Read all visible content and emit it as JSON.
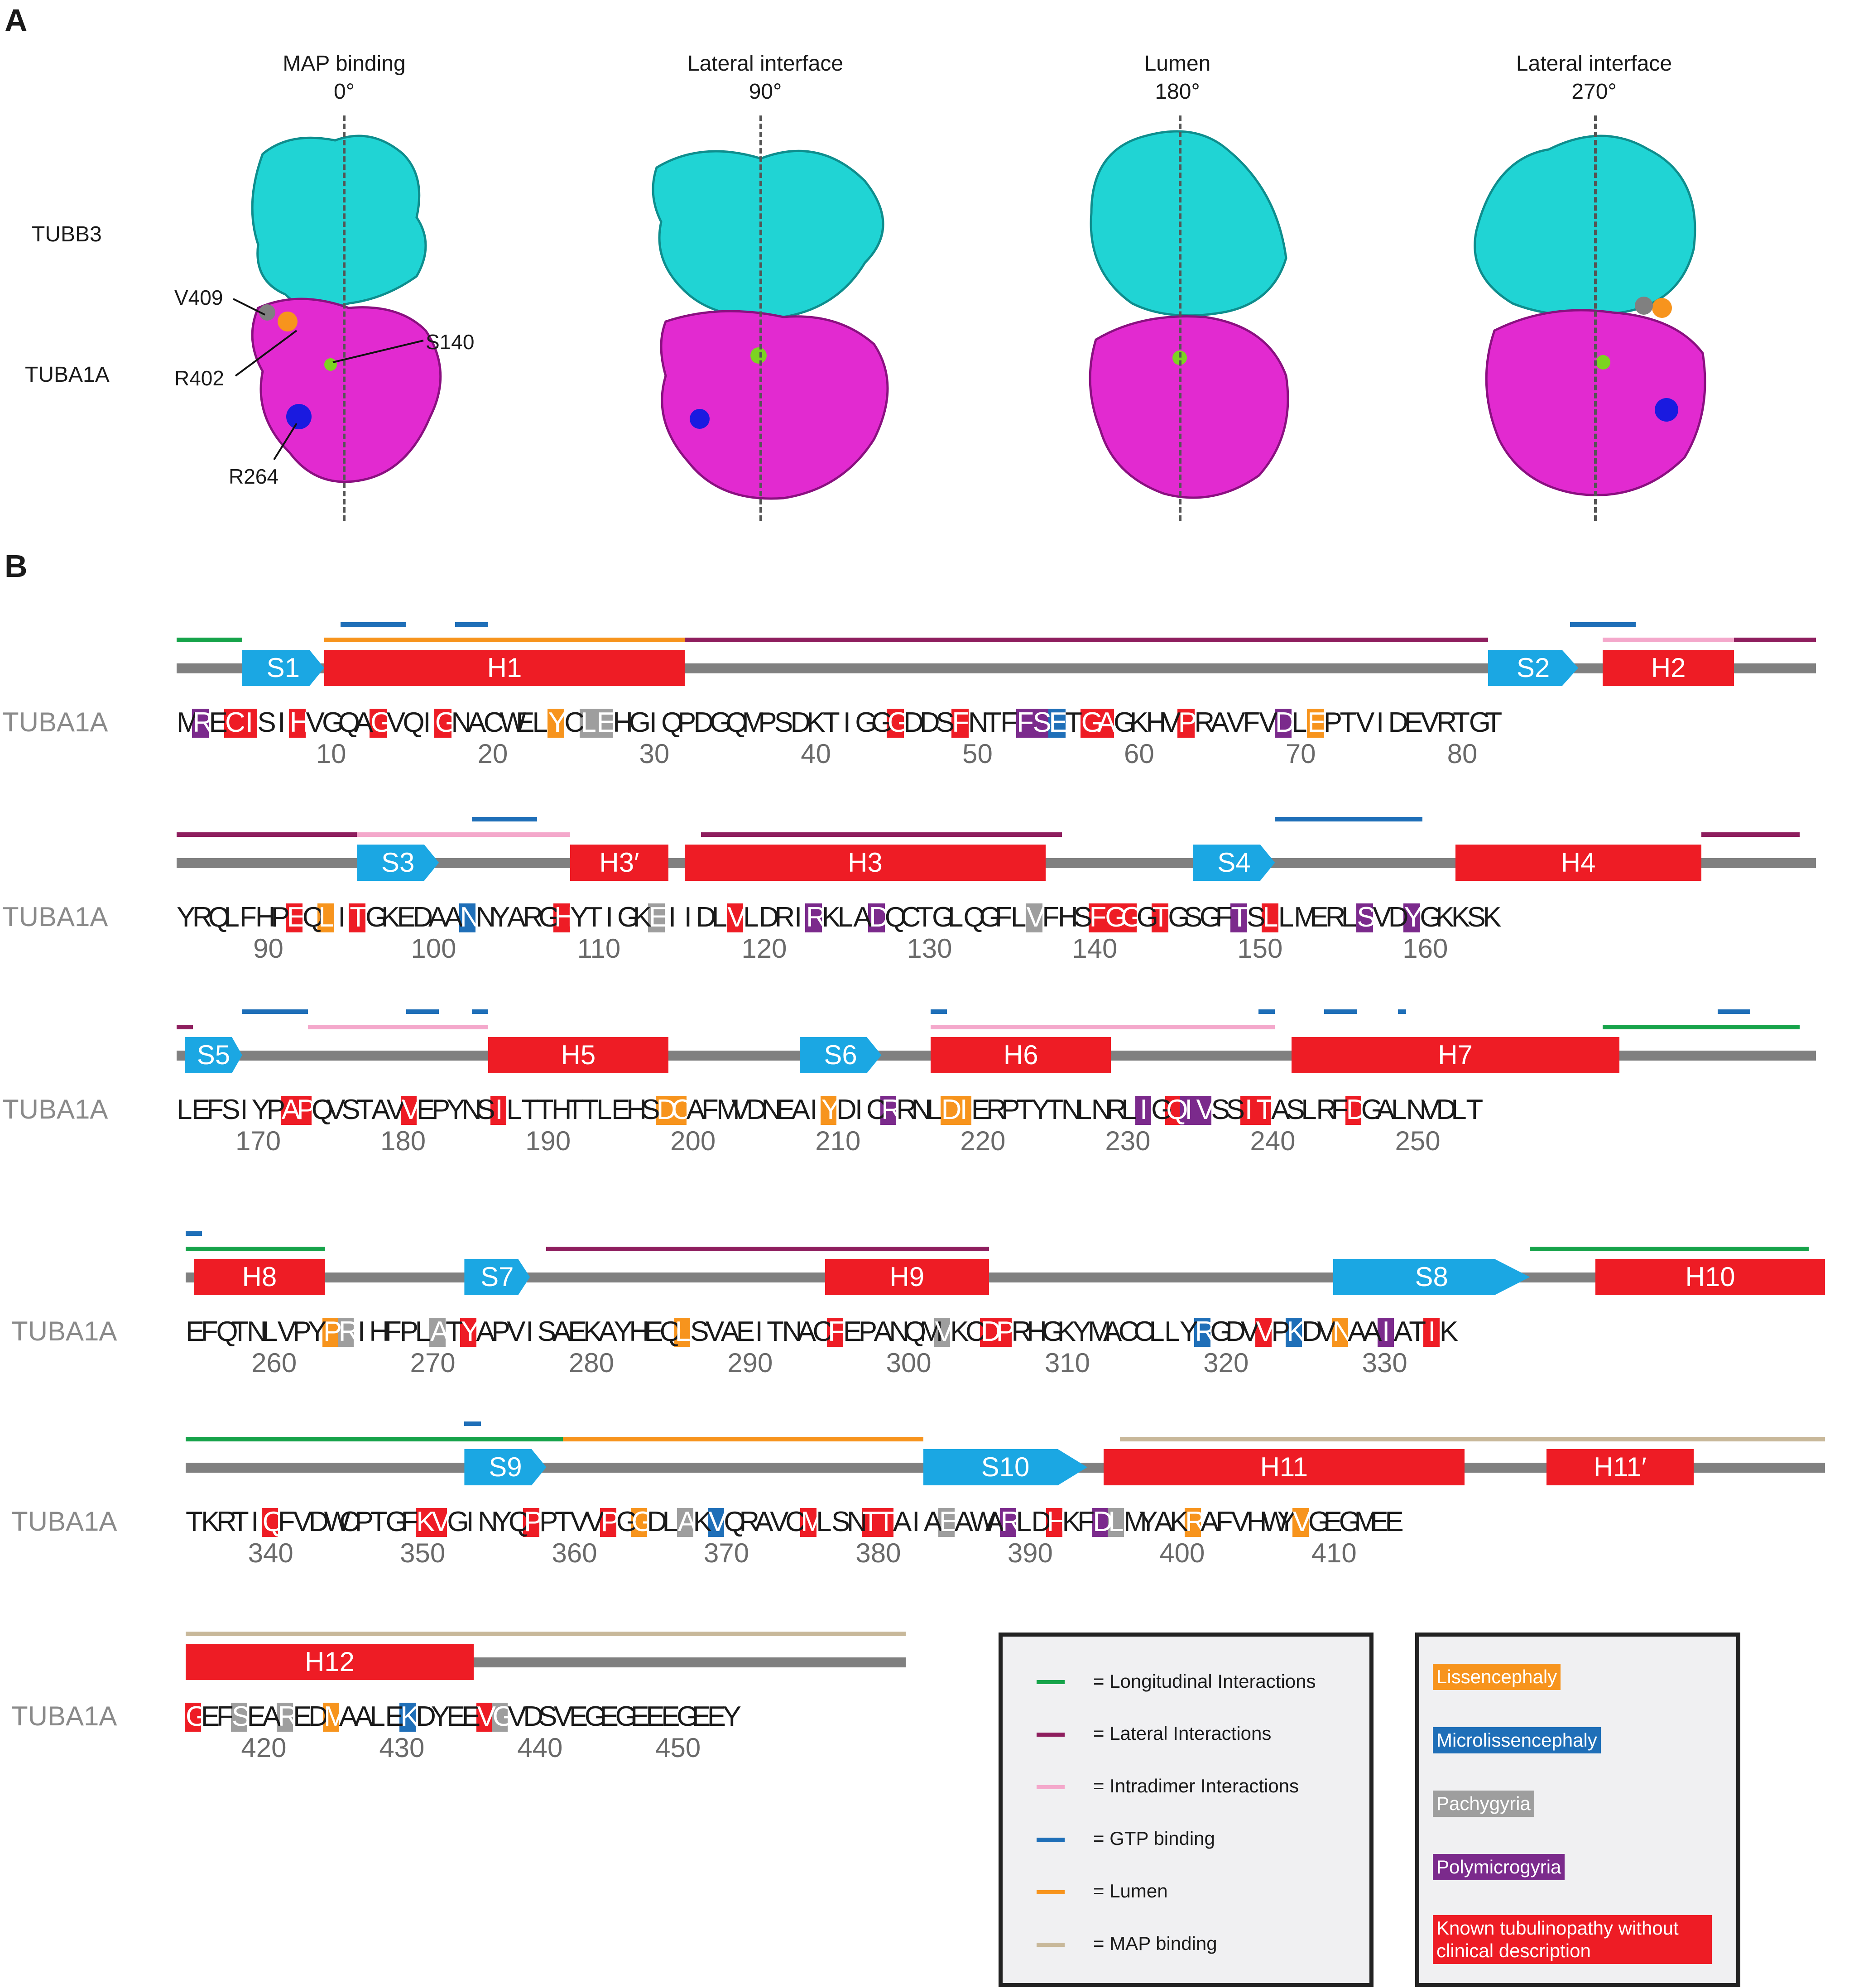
{
  "panel_labels": [
    "A",
    "B"
  ],
  "views": [
    {
      "title": "MAP binding",
      "angle": "0°"
    },
    {
      "title": "Lateral interface",
      "angle": "90°"
    },
    {
      "title": "Lumen",
      "angle": "180°"
    },
    {
      "title": "Lateral interface",
      "angle": "270°"
    }
  ],
  "molecule_labels": {
    "beta": "TUBB3",
    "alpha": "TUBA1A"
  },
  "residue_callouts": [
    "V409",
    "R402",
    "S140",
    "R264"
  ],
  "colors": {
    "beta_subunit": "#20d4d4",
    "alpha_subunit": "#e22ad0",
    "helix": "#ee1c25",
    "strand": "#1ba7e3",
    "backbone": "#808080",
    "longitudinal": "#16a34a",
    "lateral": "#8e1e5e",
    "intradimer": "#f4a8cb",
    "gtp": "#1f6fb8",
    "lumen": "#f7941d",
    "map_binding": "#c8b89a",
    "lissencephaly": "#f7941d",
    "microlissencephaly": "#1f6fb8",
    "pachygyria": "#9e9e9e",
    "polymicrogyria": "#7b2a8c",
    "known": "#ee1c25"
  },
  "sequence_label": "TUBA1A",
  "rows": [
    {
      "seq": "MRECISIHVGQAGVQIGNACWELYCLEHGIQPDGQMPSDKTIGGGDDSFNTFFSETGAGKHVPRAVFVDLEPTVIDEVRTGT",
      "ticks": [
        "10",
        "20",
        "30",
        "40",
        "50",
        "60",
        "70",
        "80"
      ],
      "marks": {
        "R": [
          1
        ],
        "I": [
          3
        ],
        "S": [
          4
        ],
        "V": [
          7,
          12
        ],
        "N": [
          16
        ],
        "C": [
          23
        ],
        "L": [
          24
        ],
        "E": [
          25
        ],
        "D": [
          44
        ],
        "T": [
          48
        ],
        "S2": [
          52
        ],
        "E2": [
          53
        ],
        "T2": [
          54
        ],
        "A": [
          55
        ],
        "G": [
          56
        ],
        "R2": [
          62
        ],
        "L2": [
          68
        ],
        "P": [
          70
        ]
      },
      "elements": [
        {
          "type": "strand",
          "label": "S1"
        },
        {
          "type": "helix",
          "label": "H1"
        },
        {
          "type": "strand",
          "label": "S2"
        },
        {
          "type": "helix",
          "label": "H2"
        }
      ]
    },
    {
      "seq": "YRQLFHPEQLITGKEDAANNYARGHYTIGKEIIDLVLDRIRKLADQCTGLQGFLVFHSFGGGTGSGFTSLLMERLSVDYGKKSK",
      "ticks": [
        "90",
        "100",
        "110",
        "120",
        "130",
        "140",
        "150",
        "160"
      ],
      "elements": [
        {
          "type": "strand",
          "label": "S3"
        },
        {
          "type": "helix",
          "label": "H3′"
        },
        {
          "type": "helix",
          "label": "H3"
        },
        {
          "type": "strand",
          "label": "S4"
        },
        {
          "type": "helix",
          "label": "H4"
        }
      ]
    },
    {
      "seq": "LEFSIYPAPQVSTAVVEPYNSILTTHTTLEHSDCAFMVDNEAIYDICRRNLDIERPTYTNLNRLIGQIVSSITASLRFDGALNVDLT",
      "ticks": [
        "170",
        "180",
        "190",
        "200",
        "210",
        "220",
        "230",
        "240",
        "250"
      ],
      "elements": [
        {
          "type": "strand",
          "label": "S5"
        },
        {
          "type": "helix",
          "label": "H5"
        },
        {
          "type": "strand",
          "label": "S6"
        },
        {
          "type": "helix",
          "label": "H6"
        },
        {
          "type": "helix",
          "label": "H7"
        }
      ]
    },
    {
      "seq": "EFQTNLVPYPRIHFPLATYAPVISAEKAYHEQLSVAEITNACFEPANQMVKCDPRHGKYMACCLLYRGDVVPKDVNAAIATIK",
      "ticks": [
        "260",
        "270",
        "280",
        "290",
        "300",
        "310",
        "320",
        "330"
      ],
      "elements": [
        {
          "type": "helix",
          "label": "H8"
        },
        {
          "type": "strand",
          "label": "S7"
        },
        {
          "type": "helix",
          "label": "H9"
        },
        {
          "type": "strand",
          "label": "S8"
        },
        {
          "type": "helix",
          "label": "H10"
        }
      ]
    },
    {
      "seq": "TKRTIQFVDWCPTGFKVGINYQPPTVVPGGDLAKVQRAVCMLSNTTAIAEAWARLDHKFDLMYAKRAFVHWYVGEGMEE",
      "ticks": [
        "340",
        "350",
        "360",
        "370",
        "380",
        "390",
        "400",
        "410"
      ],
      "elements": [
        {
          "type": "strand",
          "label": "S9"
        },
        {
          "type": "strand",
          "label": "S10"
        },
        {
          "type": "helix",
          "label": "H11"
        },
        {
          "type": "helix",
          "label": "H11′"
        }
      ]
    },
    {
      "seq": "GEFSEAREDMAALEKDYEEVGVDSVEGEGEEEGEEY",
      "ticks": [
        "420",
        "430",
        "440",
        "450"
      ],
      "elements": [
        {
          "type": "helix",
          "label": "H12"
        }
      ]
    }
  ],
  "legend_interactions": [
    {
      "label": "= Longitudinal Interactions",
      "color": "#16a34a"
    },
    {
      "label": "= Lateral Interactions",
      "color": "#8e1e5e"
    },
    {
      "label": "= Intradimer Interactions",
      "color": "#f4a8cb"
    },
    {
      "label": "= GTP binding",
      "color": "#1f6fb8"
    },
    {
      "label": "= Lumen",
      "color": "#f7941d"
    },
    {
      "label": "= MAP binding",
      "color": "#c8b89a"
    }
  ],
  "legend_phenotypes": [
    {
      "label": "Lissencephaly",
      "color": "#f7941d"
    },
    {
      "label": "Microlissencephaly",
      "color": "#1f6fb8"
    },
    {
      "label": "Pachygyria",
      "color": "#9e9e9e"
    },
    {
      "label": "Polymicrogyria",
      "color": "#7b2a8c"
    },
    {
      "label": "Known tubulinopathy without clinical description",
      "color": "#ee1c25"
    }
  ]
}
